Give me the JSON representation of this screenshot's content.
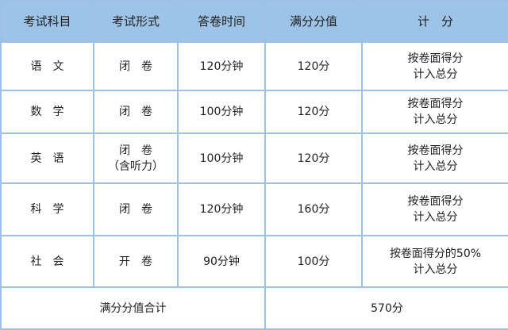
{
  "headers": [
    "考试科目",
    "考试形式",
    "答卷时间",
    "满分分值",
    "计　分"
  ],
  "rows": [
    {
      "subject": "语　文",
      "form": "闭　卷",
      "form_note": "",
      "time": "120分钟",
      "score": "120分",
      "calc1": "按卷面得分",
      "calc2": "计入总分"
    },
    {
      "subject": "数　学",
      "form": "闭　卷",
      "form_note": "",
      "time": "100分钟",
      "score": "120分",
      "calc1": "按卷面得分",
      "calc2": "计入总分"
    },
    {
      "subject": "英　语",
      "form": "闭　卷",
      "form_note": "（含听力）",
      "time": "100分钟",
      "score": "120分",
      "calc1": "按卷面得分",
      "calc2": "计入总分"
    },
    {
      "subject": "科　学",
      "form": "闭　卷",
      "form_note": "",
      "time": "120分钟",
      "score": "160分",
      "calc1": "按卷面得分",
      "calc2": "计入总分"
    },
    {
      "subject": "社　会",
      "form": "开　卷",
      "form_note": "",
      "time": "90分钟",
      "score": "100分",
      "calc1": "按卷面得分的50%",
      "calc2": "计入总分"
    }
  ],
  "total": {
    "label": "满分分值合计",
    "value": "570分"
  },
  "colors": {
    "header_bg": "#9dc3e6",
    "border": "#9cc0e8"
  }
}
